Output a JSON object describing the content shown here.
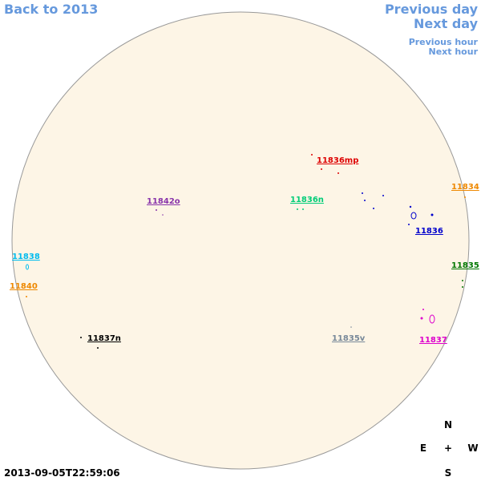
{
  "nav": {
    "back": "Back to 2013",
    "previous_day": "Previous day",
    "next_day": "Next day",
    "previous_hour": "Previous hour",
    "next_hour": "Next hour"
  },
  "timestamp": "2013-09-05T22:59:06",
  "compass": {
    "north": "N",
    "east": "E",
    "center": "+",
    "west": "W",
    "south": "S"
  },
  "regions": [
    {
      "label": "11836mp",
      "color": "#dd0000"
    },
    {
      "label": "11842o",
      "color": "#8833aa"
    },
    {
      "label": "11836n",
      "color": "#00cc77"
    },
    {
      "label": "11834",
      "color": "#ee8800"
    },
    {
      "label": "11836",
      "color": "#0000cc"
    },
    {
      "label": "11838",
      "color": "#00bbee"
    },
    {
      "label": "11835",
      "color": "#007700"
    },
    {
      "label": "11840",
      "color": "#ee8800"
    },
    {
      "label": "11837n",
      "color": "#000000"
    },
    {
      "label": "11835v",
      "color": "#778899"
    },
    {
      "label": "11837",
      "color": "#dd00cc"
    }
  ]
}
